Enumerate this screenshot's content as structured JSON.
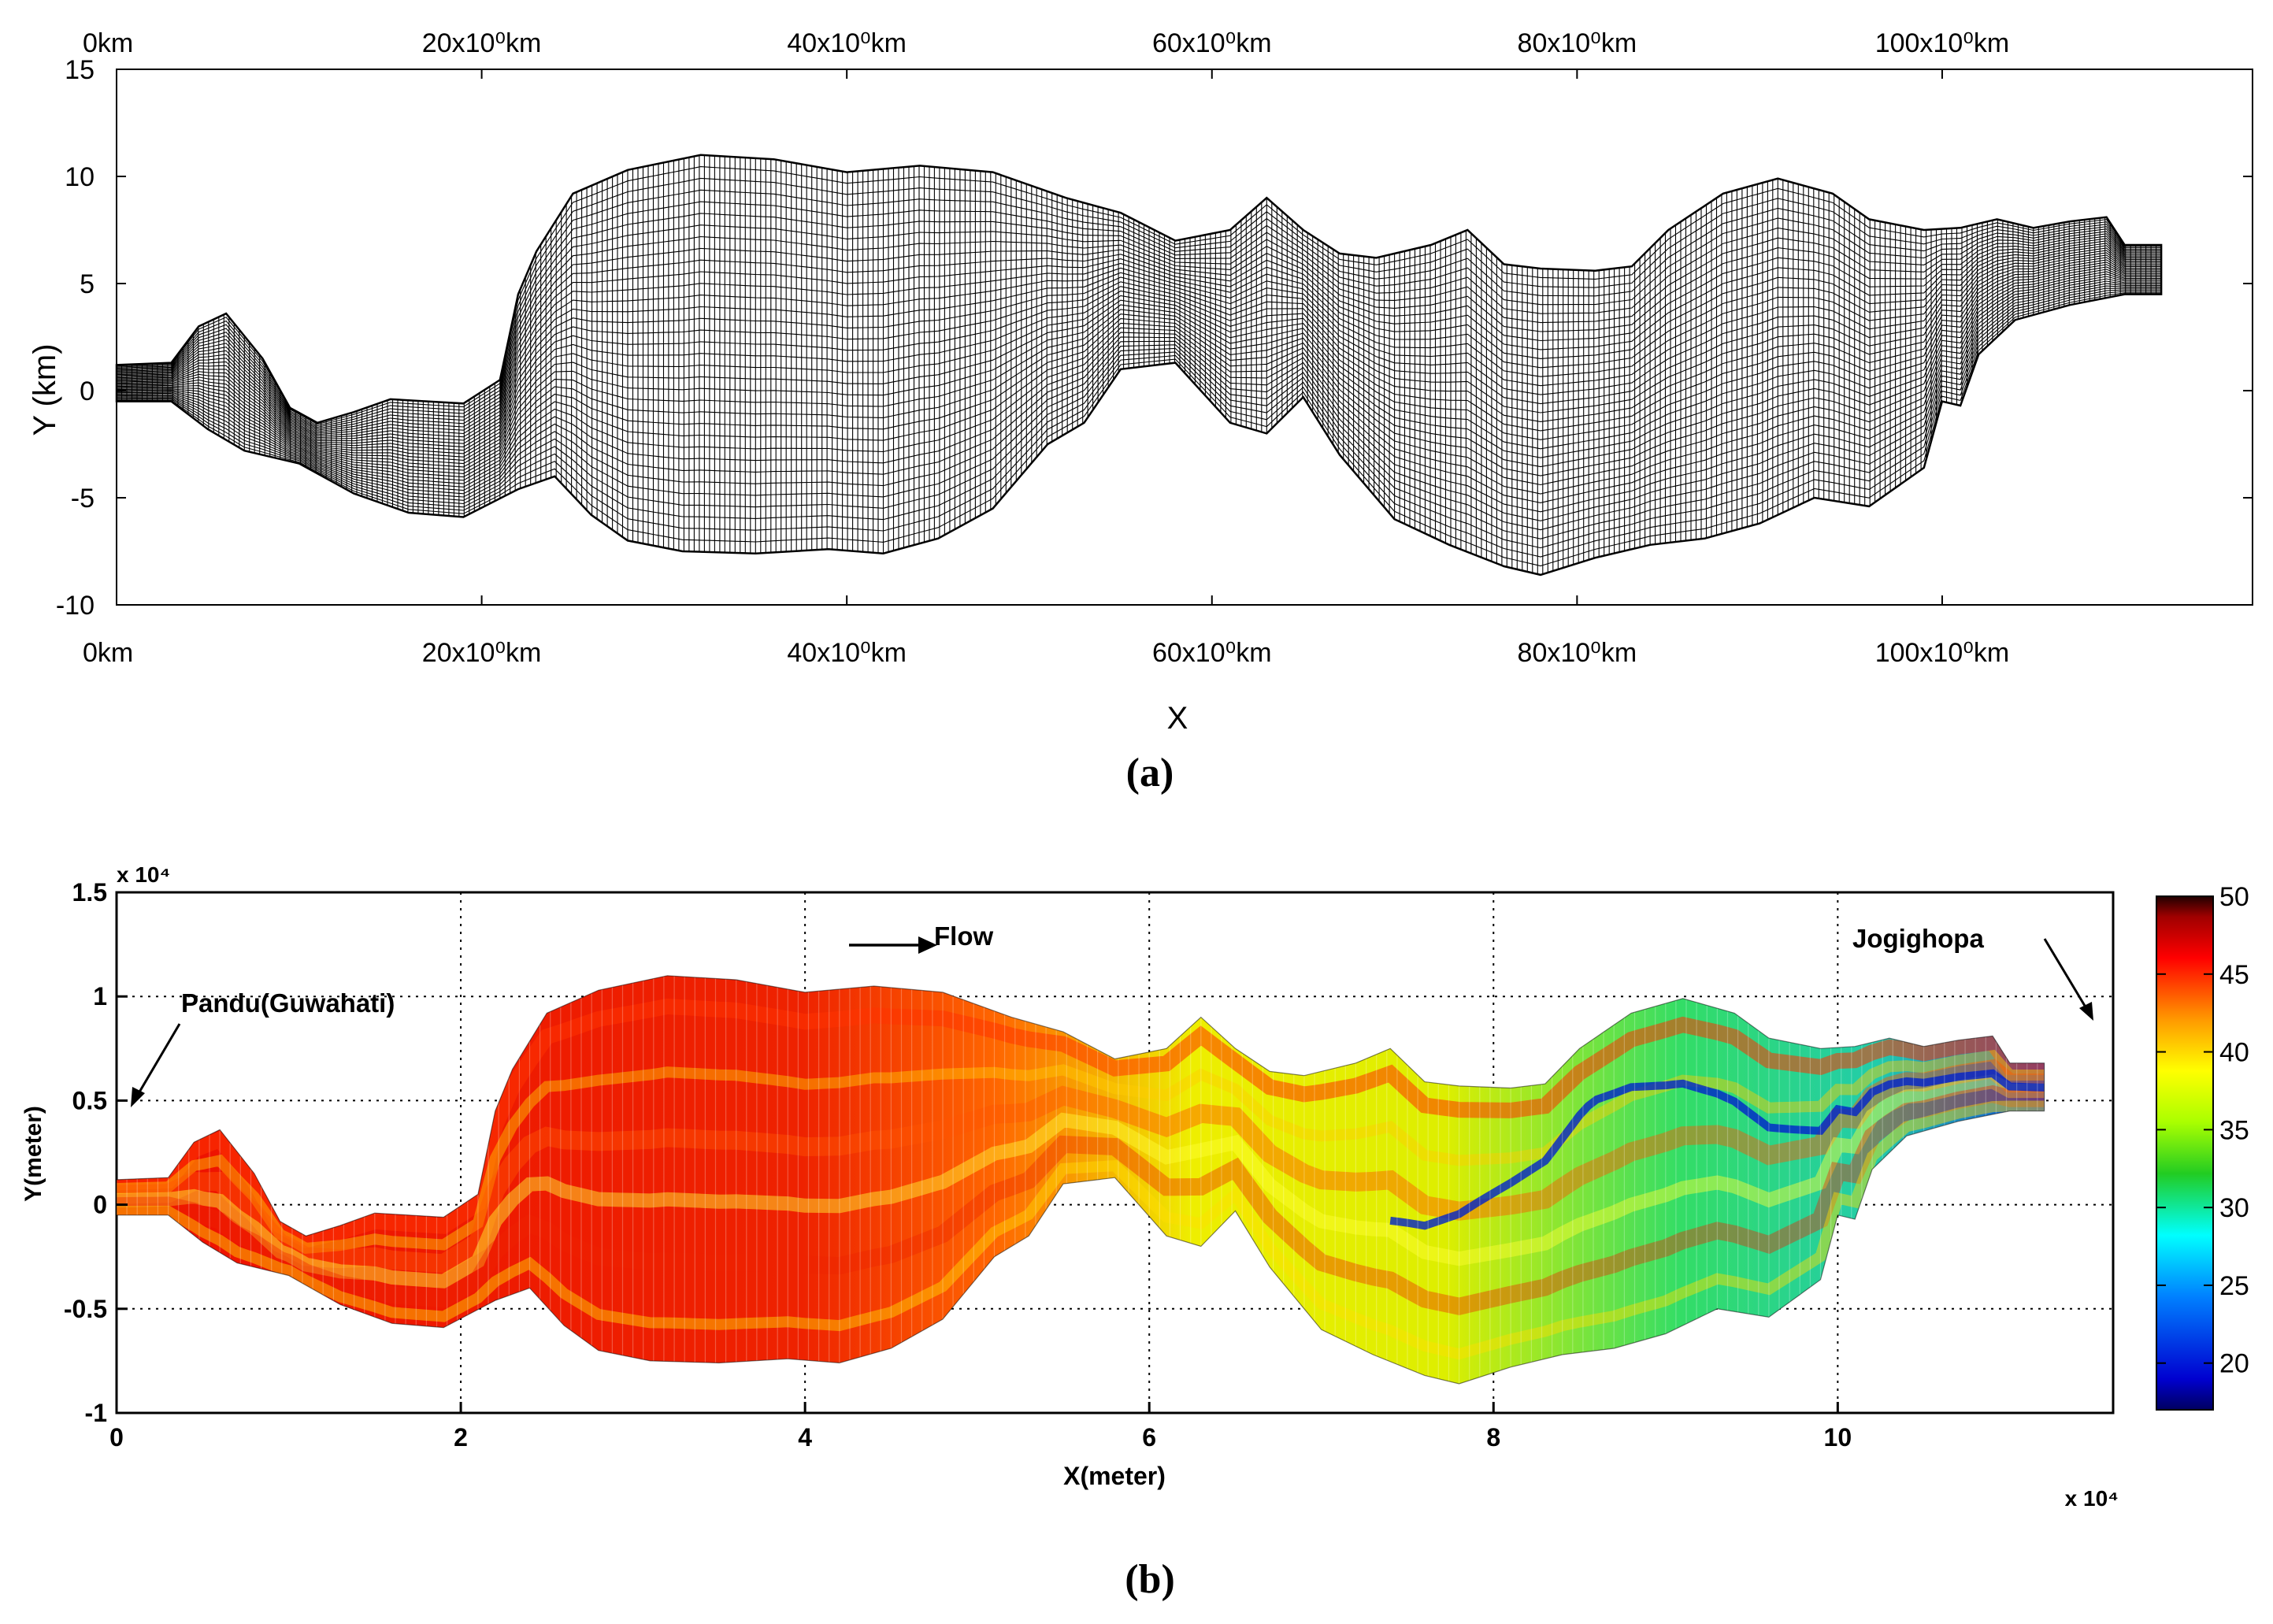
{
  "chart_data": [
    {
      "panel_label": "(a)",
      "type": "mesh",
      "xlabel": "X",
      "ylabel": "Y (km)",
      "xlim": [
        0,
        117
      ],
      "ylim": [
        -10,
        15
      ],
      "x_ticks": [
        {
          "value": 0,
          "label": "0km"
        },
        {
          "value": 20,
          "label": "20x10⁰km"
        },
        {
          "value": 40,
          "label": "40x10⁰km"
        },
        {
          "value": 60,
          "label": "60x10⁰km"
        },
        {
          "value": 80,
          "label": "80x10⁰km"
        },
        {
          "value": 100,
          "label": "100x10⁰km"
        }
      ],
      "y_ticks": [
        {
          "value": 15,
          "label": "15"
        },
        {
          "value": 10,
          "label": "10"
        },
        {
          "value": 5,
          "label": "5"
        },
        {
          "value": 0,
          "label": "0"
        },
        {
          "value": -5,
          "label": "-5"
        },
        {
          "value": -10,
          "label": "-10"
        }
      ],
      "upper_bank": [
        [
          0,
          1.2
        ],
        [
          3,
          1.3
        ],
        [
          4.5,
          3
        ],
        [
          6,
          3.6
        ],
        [
          8,
          1.5
        ],
        [
          9.5,
          -0.8
        ],
        [
          11,
          -1.5
        ],
        [
          13,
          -1
        ],
        [
          15,
          -0.4
        ],
        [
          17,
          -0.5
        ],
        [
          19,
          -0.6
        ],
        [
          21,
          0.5
        ],
        [
          22,
          4.5
        ],
        [
          23,
          6.5
        ],
        [
          25,
          9.2
        ],
        [
          28,
          10.3
        ],
        [
          32,
          11
        ],
        [
          36,
          10.8
        ],
        [
          40,
          10.2
        ],
        [
          44,
          10.5
        ],
        [
          48,
          10.2
        ],
        [
          52,
          9
        ],
        [
          55,
          8.3
        ],
        [
          58,
          7
        ],
        [
          61,
          7.5
        ],
        [
          63,
          9
        ],
        [
          65,
          7.5
        ],
        [
          67,
          6.4
        ],
        [
          69,
          6.2
        ],
        [
          72,
          6.8
        ],
        [
          74,
          7.5
        ],
        [
          76,
          5.9
        ],
        [
          78,
          5.7
        ],
        [
          81,
          5.6
        ],
        [
          83,
          5.8
        ],
        [
          85,
          7.5
        ],
        [
          88,
          9.2
        ],
        [
          91,
          9.9
        ],
        [
          94,
          9.2
        ],
        [
          96,
          8
        ],
        [
          99,
          7.5
        ],
        [
          101,
          7.6
        ],
        [
          103,
          8
        ],
        [
          105,
          7.6
        ],
        [
          107,
          7.9
        ],
        [
          109,
          8.1
        ],
        [
          110,
          6.8
        ],
        [
          112,
          6.8
        ]
      ],
      "lower_bank": [
        [
          0,
          -0.5
        ],
        [
          3,
          -0.5
        ],
        [
          5,
          -1.8
        ],
        [
          7,
          -2.8
        ],
        [
          10,
          -3.4
        ],
        [
          13,
          -4.8
        ],
        [
          16,
          -5.7
        ],
        [
          19,
          -5.9
        ],
        [
          22,
          -4.6
        ],
        [
          24,
          -4
        ],
        [
          26,
          -5.8
        ],
        [
          28,
          -7
        ],
        [
          31,
          -7.5
        ],
        [
          35,
          -7.6
        ],
        [
          39,
          -7.4
        ],
        [
          42,
          -7.6
        ],
        [
          45,
          -6.9
        ],
        [
          48,
          -5.5
        ],
        [
          51,
          -2.5
        ],
        [
          53,
          -1.5
        ],
        [
          55,
          1
        ],
        [
          58,
          1.3
        ],
        [
          61,
          -1.5
        ],
        [
          63,
          -2
        ],
        [
          65,
          -0.3
        ],
        [
          67,
          -3
        ],
        [
          70,
          -6
        ],
        [
          73,
          -7.2
        ],
        [
          76,
          -8.2
        ],
        [
          78,
          -8.6
        ],
        [
          81,
          -7.8
        ],
        [
          84,
          -7.2
        ],
        [
          87,
          -6.9
        ],
        [
          90,
          -6.2
        ],
        [
          93,
          -5
        ],
        [
          96,
          -5.4
        ],
        [
          99,
          -3.6
        ],
        [
          100,
          -0.5
        ],
        [
          101,
          -0.7
        ],
        [
          102,
          1.7
        ],
        [
          104,
          3.3
        ],
        [
          107,
          4
        ],
        [
          110,
          4.5
        ],
        [
          112,
          4.5
        ]
      ]
    },
    {
      "panel_label": "(b)",
      "type": "heatmap",
      "xlabel": "X(meter)",
      "ylabel": "Y(meter)",
      "x_multiplier": "x 10⁴",
      "y_multiplier": "x 10⁴",
      "xlim": [
        0,
        11.6
      ],
      "ylim": [
        -1,
        1.5
      ],
      "x_ticks": [
        "0",
        "2",
        "4",
        "6",
        "8",
        "10"
      ],
      "y_ticks": [
        "1.5",
        "1",
        "0.5",
        "0",
        "-0.5",
        "-1"
      ],
      "grid": true,
      "colorbar": {
        "min": 17,
        "max": 50,
        "ticks": [
          "50",
          "45",
          "40",
          "35",
          "30",
          "25",
          "20"
        ]
      },
      "annotations": {
        "pandu": "Pandu(Guwahati)",
        "flow": "Flow",
        "jogighopa": "Jogighopa"
      },
      "value_profile": [
        [
          0,
          44
        ],
        [
          0.8,
          46
        ],
        [
          1.2,
          37
        ],
        [
          1.6,
          32
        ],
        [
          2.0,
          44
        ],
        [
          2.4,
          46
        ],
        [
          3.2,
          44
        ],
        [
          4.0,
          42
        ],
        [
          5.0,
          40
        ],
        [
          6.0,
          36
        ],
        [
          7.0,
          38
        ],
        [
          7.5,
          36
        ],
        [
          8.0,
          34
        ],
        [
          8.5,
          33
        ],
        [
          9.2,
          32
        ],
        [
          10,
          30
        ],
        [
          10.6,
          26
        ],
        [
          11.3,
          21
        ]
      ]
    }
  ]
}
